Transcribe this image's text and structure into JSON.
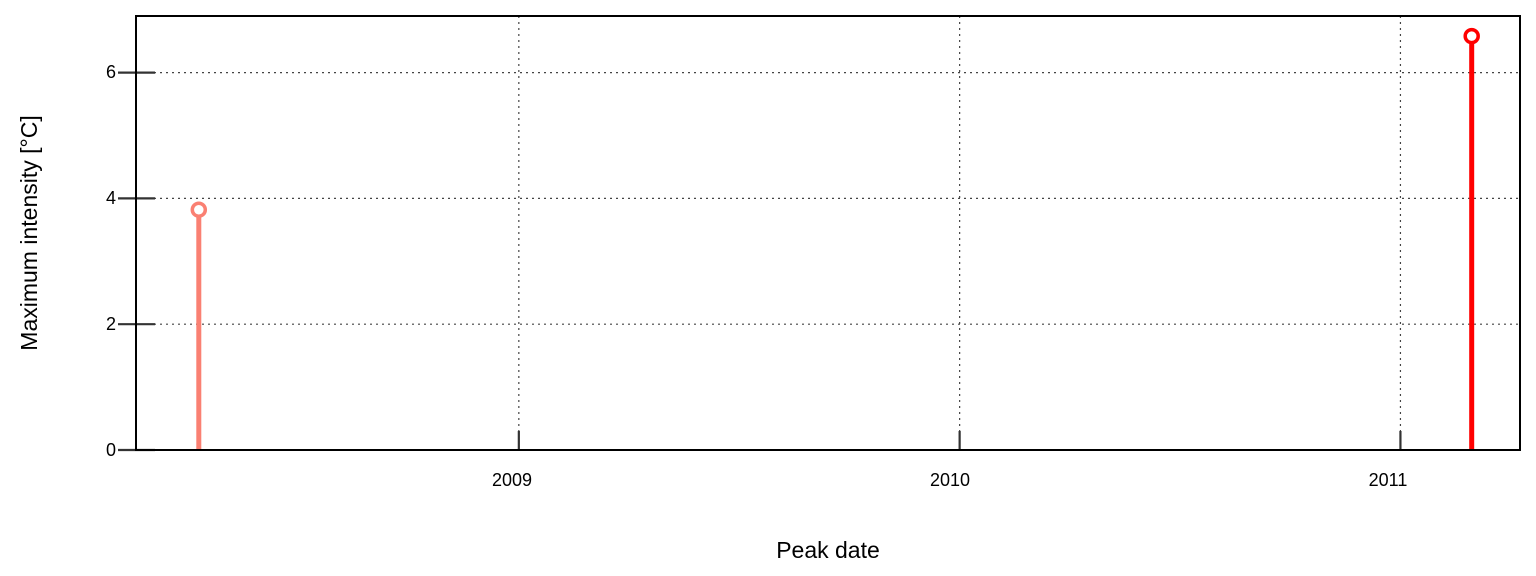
{
  "chart_data": {
    "type": "stem",
    "title": "",
    "xlabel": "Peak date",
    "ylabel": "Maximum intensity [°C]",
    "x_tick_labels": [
      "2009",
      "2010",
      "2011"
    ],
    "y_tick_labels": [
      "0",
      "2",
      "4",
      "6"
    ],
    "y_ticks": [
      0,
      2,
      4,
      6
    ],
    "xlim": [
      "2008-02-19",
      "2011-04-10"
    ],
    "ylim": [
      0,
      6.9
    ],
    "grid": true,
    "grid_style": "dotted",
    "legend": "none",
    "points": [
      {
        "date": "2008-04-11",
        "value": 3.82,
        "color": "#fa8072"
      },
      {
        "date": "2011-03-01",
        "value": 6.58,
        "color": "#ff0000"
      }
    ]
  }
}
